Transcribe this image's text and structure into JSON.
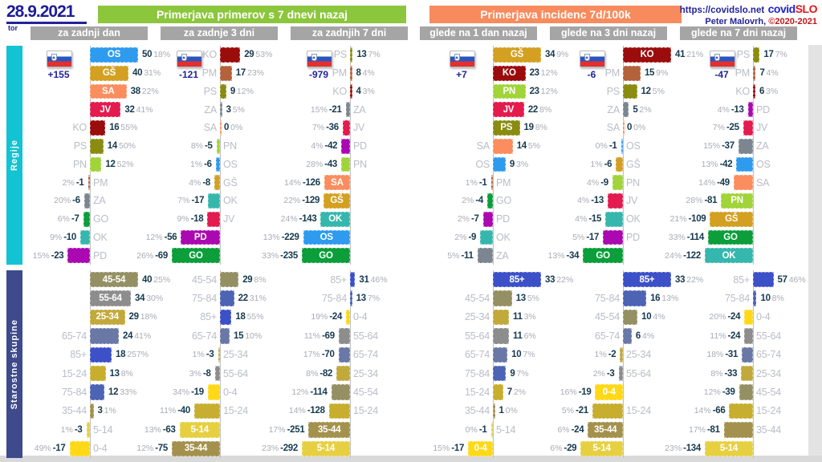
{
  "meta": {
    "date": "28.9.2021",
    "day": "tor",
    "url": "https://covidslo.net",
    "brand_covid": "covid",
    "brand_slo": "SLO",
    "credit": "Peter Malovrh,",
    "credit_years": "©2020-2021"
  },
  "headers": {
    "left": "Primerjava primerov s 7 dnevi nazaj",
    "right": "Primerjava incidenc 7d/100k"
  },
  "subheaders": [
    "za zadnji dan",
    "za zadnje 3 dni",
    "za zadnjih 7 dni",
    "glede na 1 dan nazaj",
    "glede na 3 dni nazaj",
    "glede na 7 dni nazaj"
  ],
  "colors": {
    "header_left": "#8cc63c",
    "header_right": "#f88b5e",
    "subheader": "#a5a5a5",
    "section_regije": "#12c3d3",
    "section_starostne": "#3e4a8c",
    "regions": {
      "OS": "#2e9bef",
      "GŠ": "#d3a021",
      "SA": "#fb8d5e",
      "JV": "#e31b4e",
      "KO": "#9b0d0d",
      "PS": "#8a8c12",
      "PN": "#a0d438",
      "PM": "#b3623b",
      "ZA": "#7c8690",
      "GO": "#0b9e3a",
      "OK": "#35b7ad",
      "PD": "#aa08b0"
    },
    "ages": {
      "0-4": "#ffd918",
      "5-14": "#e6d041",
      "15-24": "#c7ae2e",
      "25-34": "#c2a93b",
      "35-44": "#a3914d",
      "45-54": "#959064",
      "55-64": "#8d8d8d",
      "65-74": "#6a78a5",
      "75-84": "#4d63b4",
      "85+": "#3c50c8"
    }
  },
  "chart_data": {
    "type": "bar",
    "layout": "diverging-horizontal",
    "sections": [
      {
        "label": "Regije",
        "panels": [
          {
            "title": "za zadnji dan",
            "total": "+155",
            "bars": [
              {
                "label": "OS",
                "value": 50,
                "pct": "18%"
              },
              {
                "label": "GŠ",
                "value": 40,
                "pct": "31%"
              },
              {
                "label": "SA",
                "value": 38,
                "pct": "22%"
              },
              {
                "label": "JV",
                "value": 32,
                "pct": "41%"
              },
              {
                "label": "KO",
                "value": 16,
                "pct": "55%"
              },
              {
                "label": "PS",
                "value": 14,
                "pct": "50%"
              },
              {
                "label": "PN",
                "value": 12,
                "pct": "52%"
              },
              {
                "label": "PM",
                "value": -1,
                "pct": "2%"
              },
              {
                "label": "ZA",
                "value": -6,
                "pct": "20%"
              },
              {
                "label": "GO",
                "value": -7,
                "pct": "6%"
              },
              {
                "label": "OK",
                "value": -10,
                "pct": "9%"
              },
              {
                "label": "PD",
                "value": -23,
                "pct": "15%"
              }
            ]
          },
          {
            "title": "za zadnje 3 dni",
            "total": "-121",
            "bars": [
              {
                "label": "KO",
                "value": 29,
                "pct": "53%"
              },
              {
                "label": "PM",
                "value": 17,
                "pct": "23%"
              },
              {
                "label": "PS",
                "value": 9,
                "pct": "12%"
              },
              {
                "label": "ZA",
                "value": 3,
                "pct": "5%"
              },
              {
                "label": "SA",
                "value": 0,
                "pct": "0%"
              },
              {
                "label": "PN",
                "value": -5,
                "pct": "8%"
              },
              {
                "label": "OS",
                "value": -6,
                "pct": "1%"
              },
              {
                "label": "GŠ",
                "value": -8,
                "pct": "4%"
              },
              {
                "label": "OK",
                "value": -17,
                "pct": "7%"
              },
              {
                "label": "JV",
                "value": -18,
                "pct": "9%"
              },
              {
                "label": "PD",
                "value": -56,
                "pct": "12%"
              },
              {
                "label": "GO",
                "value": -69,
                "pct": "26%"
              }
            ]
          },
          {
            "title": "za zadnjih 7 dni",
            "total": "-979",
            "bars": [
              {
                "label": "PS",
                "value": 13,
                "pct": "7%"
              },
              {
                "label": "PM",
                "value": 8,
                "pct": "4%"
              },
              {
                "label": "KO",
                "value": 4,
                "pct": "3%"
              },
              {
                "label": "ZA",
                "value": -21,
                "pct": "15%"
              },
              {
                "label": "JV",
                "value": -36,
                "pct": "7%"
              },
              {
                "label": "PD",
                "value": -42,
                "pct": "4%"
              },
              {
                "label": "PN",
                "value": -43,
                "pct": "28%"
              },
              {
                "label": "SA",
                "value": -126,
                "pct": "14%"
              },
              {
                "label": "GŠ",
                "value": -129,
                "pct": "22%"
              },
              {
                "label": "OK",
                "value": -143,
                "pct": "24%"
              },
              {
                "label": "OS",
                "value": -229,
                "pct": "13%"
              },
              {
                "label": "GO",
                "value": -235,
                "pct": "33%"
              }
            ]
          },
          {
            "title": "glede na 1 dan nazaj",
            "total": "+7",
            "bars": [
              {
                "label": "GŠ",
                "value": 34,
                "pct": "9%"
              },
              {
                "label": "KO",
                "value": 23,
                "pct": "12%"
              },
              {
                "label": "PN",
                "value": 23,
                "pct": "12%"
              },
              {
                "label": "JV",
                "value": 22,
                "pct": "8%"
              },
              {
                "label": "PS",
                "value": 19,
                "pct": "8%"
              },
              {
                "label": "SA",
                "value": 14,
                "pct": "5%"
              },
              {
                "label": "OS",
                "value": 9,
                "pct": "3%"
              },
              {
                "label": "PM",
                "value": -1,
                "pct": "1%"
              },
              {
                "label": "GO",
                "value": -4,
                "pct": "2%"
              },
              {
                "label": "PD",
                "value": -7,
                "pct": "2%"
              },
              {
                "label": "OK",
                "value": -9,
                "pct": "2%"
              },
              {
                "label": "ZA",
                "value": -11,
                "pct": "5%"
              }
            ]
          },
          {
            "title": "glede na 3 dni nazaj",
            "total": "-6",
            "bars": [
              {
                "label": "KO",
                "value": 41,
                "pct": "21%"
              },
              {
                "label": "PM",
                "value": 15,
                "pct": "9%"
              },
              {
                "label": "PS",
                "value": 12,
                "pct": "5%"
              },
              {
                "label": "ZA",
                "value": 5,
                "pct": "2%"
              },
              {
                "label": "SA",
                "value": 0,
                "pct": "0%"
              },
              {
                "label": "OS",
                "value": -1,
                "pct": "0%"
              },
              {
                "label": "GŠ",
                "value": -6,
                "pct": "1%"
              },
              {
                "label": "PN",
                "value": -9,
                "pct": "4%"
              },
              {
                "label": "JV",
                "value": -13,
                "pct": "4%"
              },
              {
                "label": "OK",
                "value": -15,
                "pct": "4%"
              },
              {
                "label": "PD",
                "value": -17,
                "pct": "5%"
              },
              {
                "label": "GO",
                "value": -34,
                "pct": "13%"
              }
            ]
          },
          {
            "title": "glede na 7 dni nazaj",
            "total": "-47",
            "bars": [
              {
                "label": "PS",
                "value": 17,
                "pct": "7%"
              },
              {
                "label": "PM",
                "value": 7,
                "pct": "4%"
              },
              {
                "label": "KO",
                "value": 6,
                "pct": "3%"
              },
              {
                "label": "PD",
                "value": -13,
                "pct": "4%"
              },
              {
                "label": "JV",
                "value": -25,
                "pct": "7%"
              },
              {
                "label": "ZA",
                "value": -37,
                "pct": "15%"
              },
              {
                "label": "OS",
                "value": -42,
                "pct": "13%"
              },
              {
                "label": "SA",
                "value": -49,
                "pct": "14%"
              },
              {
                "label": "PN",
                "value": -81,
                "pct": "28%"
              },
              {
                "label": "GŠ",
                "value": -109,
                "pct": "21%"
              },
              {
                "label": "GO",
                "value": -114,
                "pct": "33%"
              },
              {
                "label": "OK",
                "value": -122,
                "pct": "24%"
              }
            ]
          }
        ]
      },
      {
        "label": "Starostne skupine",
        "panels": [
          {
            "title": "za zadnji dan",
            "bars": [
              {
                "label": "45-54",
                "value": 40,
                "pct": "25%"
              },
              {
                "label": "55-64",
                "value": 34,
                "pct": "30%"
              },
              {
                "label": "25-34",
                "value": 29,
                "pct": "18%"
              },
              {
                "label": "65-74",
                "value": 24,
                "pct": "41%"
              },
              {
                "label": "85+",
                "value": 18,
                "pct": "257%"
              },
              {
                "label": "15-24",
                "value": 13,
                "pct": "8%"
              },
              {
                "label": "75-84",
                "value": 12,
                "pct": "33%"
              },
              {
                "label": "35-44",
                "value": 3,
                "pct": "1%"
              },
              {
                "label": "5-14",
                "value": -3,
                "pct": "1%"
              },
              {
                "label": "0-4",
                "value": -17,
                "pct": "49%"
              }
            ]
          },
          {
            "title": "za zadnje 3 dni",
            "bars": [
              {
                "label": "45-54",
                "value": 29,
                "pct": "8%"
              },
              {
                "label": "75-84",
                "value": 22,
                "pct": "31%"
              },
              {
                "label": "85+",
                "value": 18,
                "pct": "55%"
              },
              {
                "label": "65-74",
                "value": 15,
                "pct": "10%"
              },
              {
                "label": "25-34",
                "value": -3,
                "pct": "1%"
              },
              {
                "label": "55-64",
                "value": -8,
                "pct": "3%"
              },
              {
                "label": "0-4",
                "value": -19,
                "pct": "34%"
              },
              {
                "label": "15-24",
                "value": -40,
                "pct": "11%"
              },
              {
                "label": "5-14",
                "value": -63,
                "pct": "13%"
              },
              {
                "label": "35-44",
                "value": -75,
                "pct": "12%"
              }
            ]
          },
          {
            "title": "za zadnjih 7 dni",
            "bars": [
              {
                "label": "85+",
                "value": 31,
                "pct": "46%"
              },
              {
                "label": "75-84",
                "value": 13,
                "pct": "7%"
              },
              {
                "label": "0-4",
                "value": -24,
                "pct": "19%"
              },
              {
                "label": "55-64",
                "value": -69,
                "pct": "11%"
              },
              {
                "label": "65-74",
                "value": -70,
                "pct": "17%"
              },
              {
                "label": "25-34",
                "value": -82,
                "pct": "8%"
              },
              {
                "label": "45-54",
                "value": -114,
                "pct": "12%"
              },
              {
                "label": "15-24",
                "value": -128,
                "pct": "14%"
              },
              {
                "label": "35-44",
                "value": -251,
                "pct": "17%"
              },
              {
                "label": "5-14",
                "value": -292,
                "pct": "23%"
              }
            ]
          },
          {
            "title": "glede na 1 dan nazaj",
            "bars": [
              {
                "label": "85+",
                "value": 33,
                "pct": "22%"
              },
              {
                "label": "45-54",
                "value": 13,
                "pct": "5%"
              },
              {
                "label": "25-34",
                "value": 11,
                "pct": "3%"
              },
              {
                "label": "55-64",
                "value": 11,
                "pct": "6%"
              },
              {
                "label": "65-74",
                "value": 10,
                "pct": "7%"
              },
              {
                "label": "75-84",
                "value": 9,
                "pct": "7%"
              },
              {
                "label": "15-24",
                "value": 7,
                "pct": "2%"
              },
              {
                "label": "35-44",
                "value": 1,
                "pct": "0%"
              },
              {
                "label": "5-14",
                "value": -1,
                "pct": "0%"
              },
              {
                "label": "0-4",
                "value": -17,
                "pct": "15%"
              }
            ]
          },
          {
            "title": "glede na 3 dni nazaj",
            "bars": [
              {
                "label": "85+",
                "value": 33,
                "pct": "22%"
              },
              {
                "label": "75-84",
                "value": 16,
                "pct": "13%"
              },
              {
                "label": "45-54",
                "value": 10,
                "pct": "4%"
              },
              {
                "label": "65-74",
                "value": 6,
                "pct": "4%"
              },
              {
                "label": "25-34",
                "value": -2,
                "pct": "1%"
              },
              {
                "label": "55-64",
                "value": -3,
                "pct": "2%"
              },
              {
                "label": "0-4",
                "value": -19,
                "pct": "16%"
              },
              {
                "label": "15-24",
                "value": -21,
                "pct": "5%"
              },
              {
                "label": "35-44",
                "value": -24,
                "pct": "6%"
              },
              {
                "label": "5-14",
                "value": -29,
                "pct": "6%"
              }
            ]
          },
          {
            "title": "glede na 7 dni nazaj",
            "bars": [
              {
                "label": "85+",
                "value": 57,
                "pct": "46%"
              },
              {
                "label": "75-84",
                "value": 10,
                "pct": "8%"
              },
              {
                "label": "0-4",
                "value": -24,
                "pct": "20%"
              },
              {
                "label": "55-64",
                "value": -24,
                "pct": "11%"
              },
              {
                "label": "65-74",
                "value": -31,
                "pct": "18%"
              },
              {
                "label": "25-34",
                "value": -33,
                "pct": "8%"
              },
              {
                "label": "45-54",
                "value": -39,
                "pct": "12%"
              },
              {
                "label": "15-24",
                "value": -66,
                "pct": "14%"
              },
              {
                "label": "35-44",
                "value": -81,
                "pct": "17%"
              },
              {
                "label": "5-14",
                "value": -134,
                "pct": "23%"
              }
            ]
          }
        ]
      }
    ]
  }
}
